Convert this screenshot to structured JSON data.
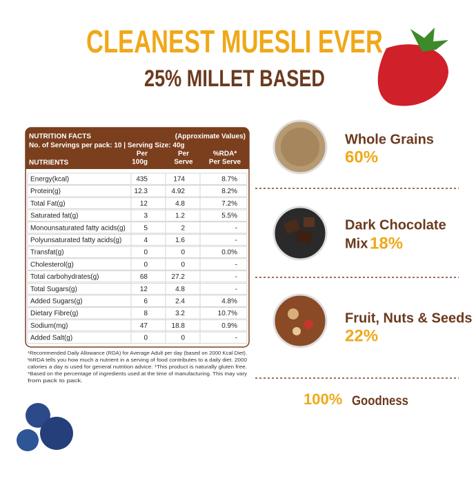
{
  "header": {
    "title": "CLEANEST MUESLI EVER",
    "subtitle": "25% MILLET BASED"
  },
  "nutrition": {
    "title": "NUTRITION FACTS",
    "note": "(Approximate Values)",
    "servings": "No. of Servings per pack: 10 | Serving Size: 40g",
    "columns": [
      [
        "NUTRIENTS"
      ],
      [
        "Per",
        "100g"
      ],
      [
        "Per",
        "Serve"
      ],
      [
        "%RDA*",
        "Per Serve"
      ]
    ],
    "rows": [
      [
        "Energy(kcal)",
        "435",
        "174",
        "8.7%"
      ],
      [
        "Protein(g)",
        "12.3",
        "4.92",
        "8.2%"
      ],
      [
        "Total Fat(g)",
        "12",
        "4.8",
        "7.2%"
      ],
      [
        "Saturated fat(g)",
        "3",
        "1.2",
        "5.5%"
      ],
      [
        "Monounsaturated fatty acids(g)",
        "5",
        "2",
        "-"
      ],
      [
        "Polyunsaturated fatty acids(g)",
        "4",
        "1.6",
        "-"
      ],
      [
        "Transfat(g)",
        "0",
        "0",
        "0.0%"
      ],
      [
        "Cholesterol(g)",
        "0",
        "0",
        "-"
      ],
      [
        "Total carbohydrates(g)",
        "68",
        "27.2",
        "-"
      ],
      [
        "Total Sugars(g)",
        "12",
        "4.8",
        "-"
      ],
      [
        "Added Sugars(g)",
        "6",
        "2.4",
        "4.8%"
      ],
      [
        "Dietary Fibre(g)",
        "8",
        "3.2",
        "10.7%"
      ],
      [
        "Sodium(mg)",
        "47",
        "18.8",
        "0.9%"
      ],
      [
        "Added Salt(g)",
        "0",
        "0",
        "-"
      ]
    ],
    "footnote": [
      "*Recommended Daily Allowance (RDA) for Average Adult per day (based on 2000 Kcal Diet).",
      "%RDA tells you how much a nutrient in a serving of food contributes to a daily diet. 2000",
      "calories a day is used for general nutrition advice. ¹This product is naturally gluten free.",
      "*Based on the percentage of ingredients used at the time of manufacturing. This may vary",
      "from pack to pack."
    ]
  },
  "ingredients": [
    {
      "lines": [
        "Whole Grains"
      ],
      "percent": "60%"
    },
    {
      "lines": [
        "Dark Chocolate",
        "Mix"
      ],
      "percent": "18%"
    },
    {
      "lines": [
        "Fruit, Nuts & Seeds"
      ],
      "percent": "22%"
    }
  ],
  "footer": {
    "percent": "100%",
    "text": "Goodness"
  }
}
